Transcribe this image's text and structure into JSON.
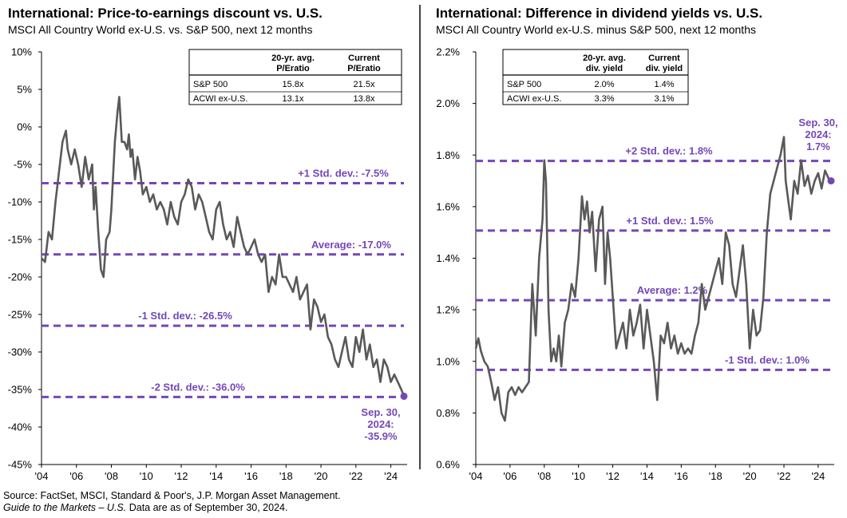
{
  "chart_data": [
    {
      "type": "line",
      "title": "International: Price-to-earnings discount vs. U.S.",
      "subtitle": "MSCI All Country World ex-U.S. vs. S&P 500, next 12 months",
      "xlabel": "",
      "ylabel": "",
      "xlim": [
        2004.0,
        2024.75
      ],
      "ylim": [
        -45,
        10
      ],
      "y_ticks": [
        "10%",
        "5%",
        "0%",
        "-5%",
        "-10%",
        "-15%",
        "-20%",
        "-25%",
        "-30%",
        "-35%",
        "-40%",
        "-45%"
      ],
      "y_tick_values": [
        10,
        5,
        0,
        -5,
        -10,
        -15,
        -20,
        -25,
        -30,
        -35,
        -40,
        -45
      ],
      "x_ticks": [
        "'04",
        "'06",
        "'08",
        "'10",
        "'12",
        "'14",
        "'16",
        "'18",
        "'20",
        "'22",
        "'24"
      ],
      "x_tick_values": [
        2004,
        2006,
        2008,
        2010,
        2012,
        2014,
        2016,
        2018,
        2020,
        2022,
        2024
      ],
      "line_color": "#595959",
      "ref_color": "#7447b8",
      "reference_lines": [
        {
          "label": "+1 Std. dev.: -7.5%",
          "value": -7.5
        },
        {
          "label": "Average: -17.0%",
          "value": -17.0
        },
        {
          "label": "-1 Std. dev.: -26.5%",
          "value": -26.5
        },
        {
          "label": "-2 Std. dev.: -36.0%",
          "value": -36.0
        }
      ],
      "end_point": {
        "x": 2024.75,
        "y": -35.9,
        "label": [
          "Sep. 30,",
          "2024:",
          "-35.9%"
        ]
      },
      "table": {
        "headers": [
          "",
          "20-yr. avg.\nP/Eratio",
          "Current\nP/Eratio"
        ],
        "rows": [
          [
            "S&P 500",
            "15.8x",
            "21.5x"
          ],
          [
            "ACWI ex-U.S.",
            "13.1x",
            "13.8x"
          ]
        ]
      },
      "series": [
        {
          "x": [
            2004.0,
            2004.2,
            2004.4,
            2004.6,
            2004.8,
            2005.0,
            2005.2,
            2005.4,
            2005.5,
            2005.7,
            2005.9,
            2006.1,
            2006.3,
            2006.5,
            2006.7,
            2006.9,
            2007.0,
            2007.1,
            2007.25,
            2007.4,
            2007.55,
            2007.7,
            2007.9,
            2008.0,
            2008.2,
            2008.35,
            2008.45,
            2008.6,
            2008.75,
            2008.9,
            2009.0,
            2009.1,
            2009.2,
            2009.35,
            2009.5,
            2009.65,
            2009.8,
            2010.0,
            2010.2,
            2010.4,
            2010.6,
            2010.8,
            2011.0,
            2011.2,
            2011.4,
            2011.6,
            2011.8,
            2012.0,
            2012.2,
            2012.4,
            2012.6,
            2012.8,
            2013.0,
            2013.2,
            2013.4,
            2013.6,
            2013.8,
            2014.0,
            2014.2,
            2014.4,
            2014.6,
            2014.8,
            2015.0,
            2015.2,
            2015.4,
            2015.6,
            2015.8,
            2016.0,
            2016.2,
            2016.4,
            2016.6,
            2016.8,
            2017.0,
            2017.2,
            2017.4,
            2017.6,
            2017.8,
            2018.0,
            2018.2,
            2018.4,
            2018.6,
            2018.8,
            2019.0,
            2019.2,
            2019.4,
            2019.6,
            2019.8,
            2020.0,
            2020.2,
            2020.4,
            2020.6,
            2020.8,
            2021.0,
            2021.2,
            2021.4,
            2021.6,
            2021.8,
            2022.0,
            2022.2,
            2022.4,
            2022.6,
            2022.8,
            2023.0,
            2023.2,
            2023.4,
            2023.6,
            2023.8,
            2024.0,
            2024.2,
            2024.4,
            2024.6,
            2024.75
          ],
          "y": [
            -17.5,
            -18,
            -14,
            -15,
            -10,
            -6,
            -2,
            -0.5,
            -3,
            -5,
            -3,
            -5,
            -8,
            -4,
            -7,
            -5,
            -11,
            -8,
            -14,
            -19,
            -20,
            -15,
            -14,
            -11,
            -2,
            2,
            4,
            -2,
            -2,
            -3,
            -1,
            -4,
            -3,
            -7,
            -4,
            -6,
            -9,
            -8,
            -10,
            -9,
            -11,
            -10,
            -11,
            -13,
            -10,
            -12,
            -13,
            -10,
            -9,
            -7,
            -8,
            -11,
            -9,
            -10,
            -12,
            -14,
            -15,
            -11,
            -10,
            -13,
            -15,
            -14,
            -16,
            -12,
            -14,
            -16,
            -17,
            -16,
            -15,
            -17,
            -18,
            -17,
            -22,
            -20,
            -21,
            -17,
            -20,
            -20,
            -21,
            -22,
            -20,
            -23,
            -22,
            -21,
            -27,
            -23,
            -24,
            -26,
            -25,
            -28,
            -29,
            -31,
            -32,
            -30,
            -28,
            -31,
            -32,
            -28,
            -30,
            -27,
            -31,
            -29,
            -32,
            -31,
            -34,
            -31,
            -32,
            -34,
            -33,
            -34,
            -35,
            -35.9
          ]
        }
      ]
    },
    {
      "type": "line",
      "title": "International: Difference in dividend yields vs. U.S.",
      "subtitle": "MSCI All Country World ex-U.S. minus S&P 500, next 12 months",
      "xlabel": "",
      "ylabel": "",
      "xlim": [
        2004.0,
        2024.75
      ],
      "ylim": [
        0.6,
        2.2
      ],
      "y_ticks": [
        "2.2%",
        "2.0%",
        "1.8%",
        "1.6%",
        "1.4%",
        "1.2%",
        "1.0%",
        "0.8%",
        "0.6%"
      ],
      "y_tick_values": [
        2.2,
        2.0,
        1.8,
        1.6,
        1.4,
        1.2,
        1.0,
        0.8,
        0.6
      ],
      "x_ticks": [
        "'04",
        "'06",
        "'08",
        "'10",
        "'12",
        "'14",
        "'16",
        "'18",
        "'20",
        "'22",
        "'24"
      ],
      "x_tick_values": [
        2004,
        2006,
        2008,
        2010,
        2012,
        2014,
        2016,
        2018,
        2020,
        2022,
        2024
      ],
      "line_color": "#595959",
      "ref_color": "#7447b8",
      "reference_lines": [
        {
          "label": "+2 Std. dev.: 1.8%",
          "value": 1.777
        },
        {
          "label": "+1 Std. dev.: 1.5%",
          "value": 1.507
        },
        {
          "label": "Average: 1.2%",
          "value": 1.237
        },
        {
          "label": "-1 Std. dev.: 1.0%",
          "value": 0.967
        }
      ],
      "end_point": {
        "x": 2024.75,
        "y": 1.7,
        "label": [
          "Sep. 30,",
          "2024:",
          "1.7%"
        ]
      },
      "table": {
        "headers": [
          "",
          "20-yr. avg.\ndiv. yield",
          "Current\ndiv. yield"
        ],
        "rows": [
          [
            "S&P 500",
            "2.0%",
            "1.4%"
          ],
          [
            "ACWI ex-U.S.",
            "3.3%",
            "3.1%"
          ]
        ]
      },
      "series": [
        {
          "x": [
            2004.0,
            2004.15,
            2004.3,
            2004.5,
            2004.7,
            2004.9,
            2005.1,
            2005.3,
            2005.5,
            2005.7,
            2005.9,
            2006.1,
            2006.3,
            2006.5,
            2006.7,
            2006.9,
            2007.1,
            2007.3,
            2007.5,
            2007.7,
            2007.9,
            2008.0,
            2008.1,
            2008.25,
            2008.4,
            2008.55,
            2008.7,
            2008.85,
            2009.0,
            2009.2,
            2009.4,
            2009.6,
            2009.8,
            2010.0,
            2010.2,
            2010.35,
            2010.5,
            2010.65,
            2010.8,
            2011.0,
            2011.2,
            2011.4,
            2011.55,
            2011.7,
            2011.85,
            2012.0,
            2012.2,
            2012.4,
            2012.6,
            2012.8,
            2013.0,
            2013.2,
            2013.4,
            2013.6,
            2013.8,
            2014.0,
            2014.2,
            2014.4,
            2014.6,
            2014.8,
            2015.0,
            2015.2,
            2015.4,
            2015.6,
            2015.8,
            2016.0,
            2016.2,
            2016.4,
            2016.6,
            2016.8,
            2017.0,
            2017.2,
            2017.4,
            2017.6,
            2017.8,
            2018.0,
            2018.2,
            2018.4,
            2018.6,
            2018.8,
            2019.0,
            2019.2,
            2019.4,
            2019.6,
            2019.8,
            2020.0,
            2020.2,
            2020.4,
            2020.6,
            2020.8,
            2021.0,
            2021.2,
            2021.4,
            2021.6,
            2021.8,
            2022.0,
            2022.1,
            2022.2,
            2022.4,
            2022.6,
            2022.8,
            2023.0,
            2023.2,
            2023.4,
            2023.6,
            2023.8,
            2024.0,
            2024.2,
            2024.4,
            2024.6,
            2024.75
          ],
          "y": [
            1.05,
            1.09,
            1.04,
            1.0,
            0.98,
            0.92,
            0.85,
            0.9,
            0.8,
            0.77,
            0.88,
            0.9,
            0.87,
            0.9,
            0.88,
            0.9,
            0.92,
            1.3,
            1.1,
            1.4,
            1.55,
            1.78,
            1.7,
            1.2,
            1.0,
            1.05,
            1.0,
            1.1,
            0.98,
            1.15,
            1.2,
            1.3,
            1.25,
            1.4,
            1.64,
            1.55,
            1.62,
            1.5,
            1.58,
            1.35,
            1.55,
            1.6,
            1.3,
            1.5,
            1.4,
            1.25,
            1.05,
            1.1,
            1.15,
            1.05,
            1.2,
            1.1,
            1.15,
            1.22,
            1.05,
            1.2,
            1.1,
            1.0,
            0.85,
            1.1,
            1.07,
            1.15,
            1.05,
            1.1,
            1.03,
            1.07,
            1.03,
            1.05,
            1.03,
            1.1,
            1.15,
            1.3,
            1.2,
            1.25,
            1.3,
            1.35,
            1.4,
            1.3,
            1.5,
            1.45,
            1.3,
            1.25,
            1.35,
            1.45,
            1.3,
            1.05,
            1.2,
            1.1,
            1.12,
            1.25,
            1.5,
            1.65,
            1.7,
            1.75,
            1.8,
            1.87,
            1.7,
            1.65,
            1.55,
            1.7,
            1.65,
            1.78,
            1.68,
            1.72,
            1.65,
            1.7,
            1.73,
            1.67,
            1.74,
            1.71,
            1.7
          ]
        }
      ]
    }
  ],
  "headers": {
    "left_title": "International: Price-to-earnings discount vs. U.S.",
    "left_subtitle": "MSCI All Country World ex-U.S. vs. S&P 500, next 12 months",
    "right_title": "International: Difference in dividend yields vs. U.S.",
    "right_subtitle": "MSCI All Country World ex-U.S. minus S&P 500, next 12 months"
  },
  "footer": {
    "source": "Source: FactSet, MSCI, Standard & Poor's, J.P. Morgan Asset Management.",
    "guide_italic": "Guide to the Markets – U.S.",
    "data_note": " Data are as of September 30, 2024."
  }
}
